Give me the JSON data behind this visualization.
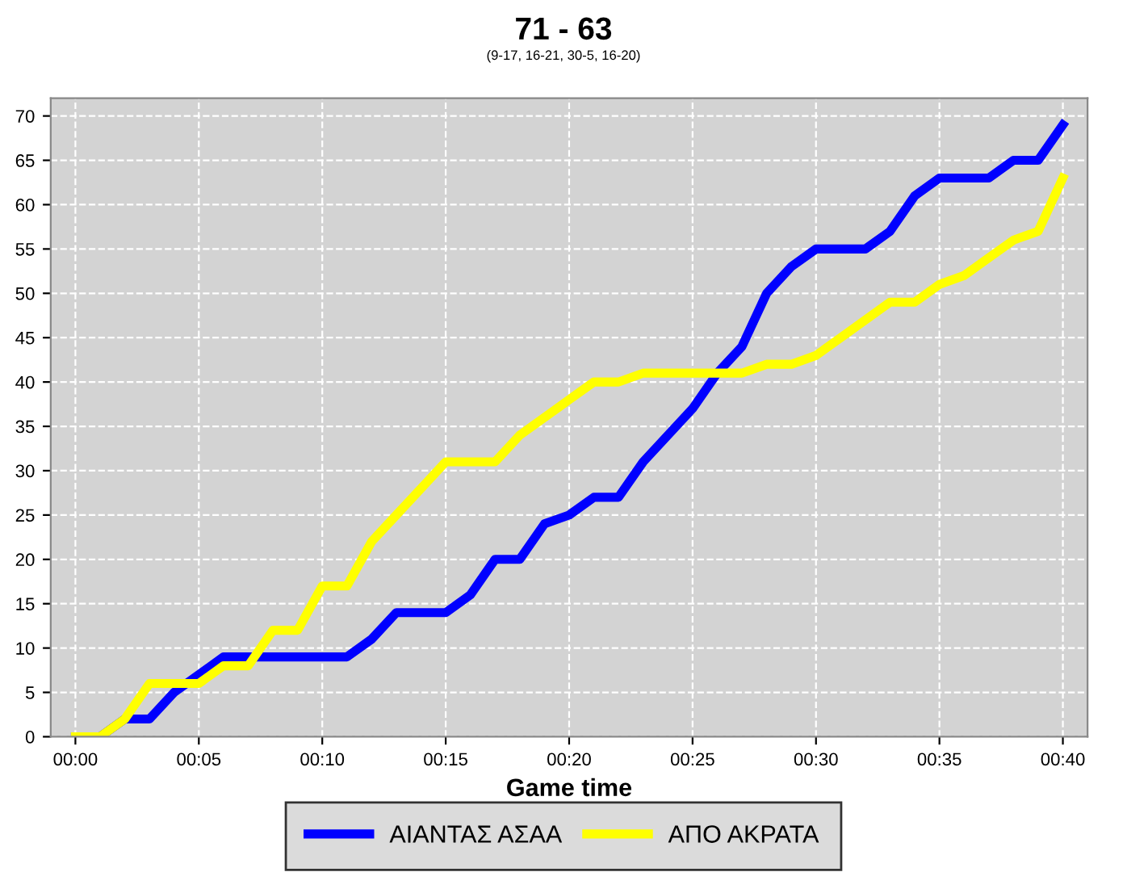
{
  "chart_data": {
    "type": "line",
    "title": "71 - 63",
    "subtitle": "(9-17, 16-21, 30-5, 16-20)",
    "xlabel": "Game time",
    "x": [
      0,
      1,
      2,
      3,
      4,
      5,
      6,
      7,
      8,
      9,
      10,
      11,
      12,
      13,
      14,
      15,
      16,
      17,
      18,
      19,
      20,
      21,
      22,
      23,
      24,
      25,
      26,
      27,
      28,
      29,
      30,
      31,
      32,
      33,
      34,
      35,
      36,
      37,
      38,
      39,
      40
    ],
    "series": [
      {
        "name": "ΑΙΑΝΤΑΣ ΑΣΑΑ",
        "color": "#0000ff",
        "values": [
          0,
          0,
          2,
          2,
          5,
          7,
          9,
          9,
          9,
          9,
          9,
          9,
          11,
          14,
          14,
          14,
          16,
          20,
          20,
          24,
          25,
          27,
          27,
          31,
          34,
          37,
          41,
          44,
          50,
          53,
          55,
          55,
          55,
          57,
          61,
          63,
          63,
          63,
          65,
          65,
          69
        ]
      },
      {
        "name": "ΑΠΟ ΑΚΡΑΤΑ",
        "color": "#ffff00",
        "values": [
          0,
          0,
          2,
          6,
          6,
          6,
          8,
          8,
          12,
          12,
          17,
          17,
          22,
          25,
          28,
          31,
          31,
          31,
          34,
          36,
          38,
          40,
          40,
          41,
          41,
          41,
          41,
          41,
          42,
          42,
          43,
          45,
          47,
          49,
          49,
          51,
          52,
          54,
          56,
          57,
          63
        ]
      }
    ],
    "xlim": [
      -1,
      41
    ],
    "ylim": [
      0,
      72
    ],
    "xticks": [
      {
        "value": 0,
        "label": "00:00"
      },
      {
        "value": 5,
        "label": "00:05"
      },
      {
        "value": 10,
        "label": "00:10"
      },
      {
        "value": 15,
        "label": "00:15"
      },
      {
        "value": 20,
        "label": "00:20"
      },
      {
        "value": 25,
        "label": "00:25"
      },
      {
        "value": 30,
        "label": "00:30"
      },
      {
        "value": 35,
        "label": "00:35"
      },
      {
        "value": 40,
        "label": "00:40"
      }
    ],
    "yticks": [
      0,
      5,
      10,
      15,
      20,
      25,
      30,
      35,
      40,
      45,
      50,
      55,
      60,
      65,
      70
    ],
    "grid": true,
    "legend": "bottom",
    "marker": "none",
    "line_style": "solid"
  }
}
